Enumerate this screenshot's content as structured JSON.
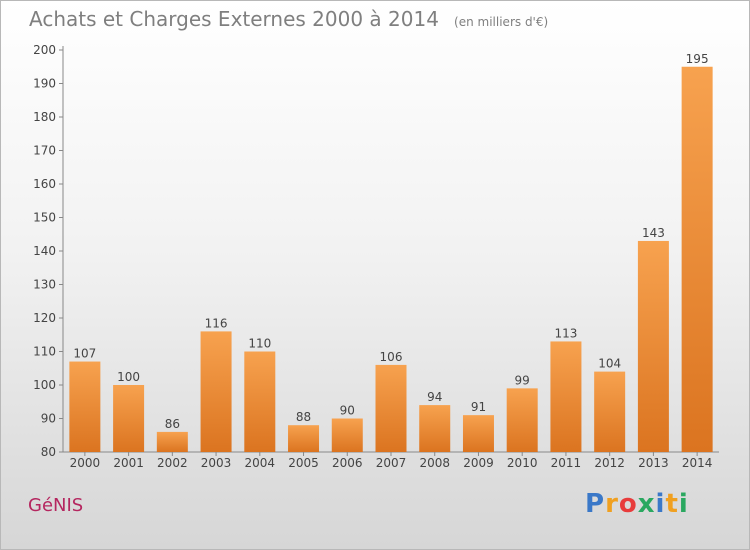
{
  "title": "Achats et Charges Externes 2000 à 2014",
  "subtitle": "(en milliers d'€)",
  "location": "GéNIS",
  "logo": {
    "letters": [
      "P",
      "r",
      "o",
      "x",
      "i",
      "t",
      "i"
    ],
    "colors": [
      "#3a78c8",
      "#f0a020",
      "#e83c3c",
      "#2aa860",
      "#3a78c8",
      "#f0a020",
      "#2aa860"
    ]
  },
  "colors": {
    "bar_light": "#f7a24f",
    "bar_dark": "#db7420",
    "axis_text": "#444444"
  },
  "chart_data": {
    "type": "bar",
    "title": "Achats et Charges Externes 2000 à 2014",
    "subtitle": "(en milliers d'€)",
    "categories": [
      "2000",
      "2001",
      "2002",
      "2003",
      "2004",
      "2005",
      "2006",
      "2007",
      "2008",
      "2009",
      "2010",
      "2011",
      "2012",
      "2013",
      "2014"
    ],
    "values": [
      107,
      100,
      86,
      116,
      110,
      88,
      90,
      106,
      94,
      91,
      99,
      113,
      104,
      143,
      195
    ],
    "ylim": [
      80,
      200
    ],
    "yticks": [
      80,
      90,
      100,
      110,
      120,
      130,
      140,
      150,
      160,
      170,
      180,
      190,
      200
    ],
    "grid": false,
    "legend": "none"
  }
}
